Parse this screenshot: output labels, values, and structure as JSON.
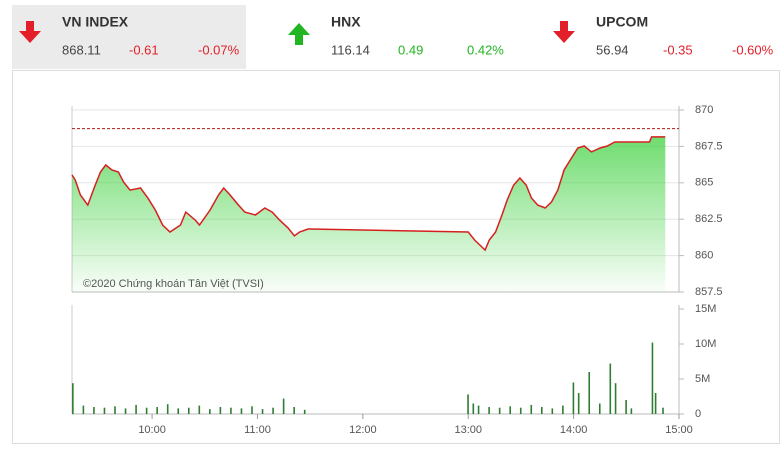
{
  "indices": [
    {
      "name": "VN INDEX",
      "value": "868.11",
      "change": "-0.61",
      "percent": "-0.07%",
      "direction": "down"
    },
    {
      "name": "HNX",
      "value": "116.14",
      "change": "0.49",
      "percent": "0.42%",
      "direction": "up"
    },
    {
      "name": "UPCOM",
      "value": "56.94",
      "change": "-0.35",
      "percent": "-0.60%",
      "direction": "down"
    }
  ],
  "watermark": "©2020 Chứng khoán Tân Việt (TVSI)",
  "chart_data": [
    {
      "type": "line",
      "color": "#d62020",
      "fill": "#5fd75f",
      "reference_line": 868.72,
      "reference_color": "#b01818",
      "x": [
        9.24,
        9.27,
        9.32,
        9.39,
        9.46,
        9.51,
        9.56,
        9.62,
        9.68,
        9.73,
        9.79,
        9.89,
        9.96,
        10.03,
        10.1,
        10.17,
        10.27,
        10.32,
        10.41,
        10.45,
        10.55,
        10.63,
        10.68,
        10.74,
        10.82,
        10.88,
        10.98,
        11.07,
        11.14,
        11.21,
        11.29,
        11.35,
        11.4,
        11.48,
        11.5,
        13.0,
        13.06,
        13.11,
        13.16,
        13.2,
        13.26,
        13.32,
        13.37,
        13.43,
        13.49,
        13.55,
        13.6,
        13.66,
        13.73,
        13.79,
        13.85,
        13.91,
        13.98,
        14.04,
        14.1,
        14.17,
        14.25,
        14.32,
        14.39,
        14.45,
        14.53,
        14.63,
        14.72,
        14.74,
        14.87
      ],
      "values": [
        865.54,
        865.2,
        864.16,
        863.47,
        864.84,
        865.74,
        866.22,
        865.88,
        865.74,
        865.05,
        864.5,
        864.64,
        863.95,
        863.13,
        862.1,
        861.62,
        862.1,
        862.99,
        862.44,
        862.1,
        863.13,
        864.16,
        864.64,
        864.16,
        863.47,
        862.99,
        862.79,
        863.27,
        862.99,
        862.44,
        861.9,
        861.35,
        861.62,
        861.83,
        861.83,
        861.62,
        861.07,
        860.73,
        860.38,
        861.07,
        861.62,
        862.79,
        863.82,
        864.84,
        865.33,
        864.84,
        863.95,
        863.47,
        863.27,
        863.68,
        864.5,
        865.88,
        866.7,
        867.39,
        867.53,
        867.12,
        867.39,
        867.53,
        867.8,
        867.8,
        867.8,
        867.8,
        867.8,
        868.15,
        868.15
      ],
      "xlim": [
        9.24,
        15
      ],
      "ylim": [
        857.5,
        870
      ],
      "yticks": [
        857.5,
        860,
        862.5,
        865,
        867.5,
        870
      ],
      "grid": true
    },
    {
      "type": "bar",
      "color": "#2e7d32",
      "x": [
        9.25,
        9.35,
        9.45,
        9.55,
        9.65,
        9.75,
        9.85,
        9.95,
        10.05,
        10.15,
        10.25,
        10.35,
        10.45,
        10.55,
        10.65,
        10.75,
        10.85,
        10.95,
        11.05,
        11.15,
        11.25,
        11.35,
        11.45,
        13.0,
        13.05,
        13.1,
        13.2,
        13.3,
        13.4,
        13.5,
        13.6,
        13.7,
        13.8,
        13.9,
        14.0,
        14.05,
        14.15,
        14.25,
        14.35,
        14.4,
        14.5,
        14.55,
        14.75,
        14.78,
        14.85
      ],
      "values": [
        4400000,
        1200000,
        1000000,
        900000,
        1100000,
        800000,
        1300000,
        900000,
        1000000,
        1400000,
        800000,
        900000,
        1200000,
        700000,
        1000000,
        900000,
        800000,
        1100000,
        700000,
        900000,
        2200000,
        1000000,
        600000,
        2800000,
        1500000,
        1200000,
        1000000,
        900000,
        1100000,
        900000,
        1300000,
        1000000,
        800000,
        1200000,
        4500000,
        3000000,
        6000000,
        1500000,
        7200000,
        4400000,
        2000000,
        800000,
        10200000,
        3000000,
        900000
      ],
      "xlim": [
        9.24,
        15
      ],
      "ylim": [
        0,
        15000000
      ],
      "yticks": [
        0,
        {
          "value": 5000000,
          "label": "5M"
        },
        {
          "value": 10000000,
          "label": "10M"
        },
        {
          "value": 15000000,
          "label": "15M"
        }
      ],
      "xticks": [
        {
          "value": 10,
          "label": "10:00"
        },
        {
          "value": 11,
          "label": "11:00"
        },
        {
          "value": 12,
          "label": "12:00"
        },
        {
          "value": 13,
          "label": "13:00"
        },
        {
          "value": 14,
          "label": "14:00"
        },
        {
          "value": 15,
          "label": "15:00"
        }
      ]
    }
  ]
}
